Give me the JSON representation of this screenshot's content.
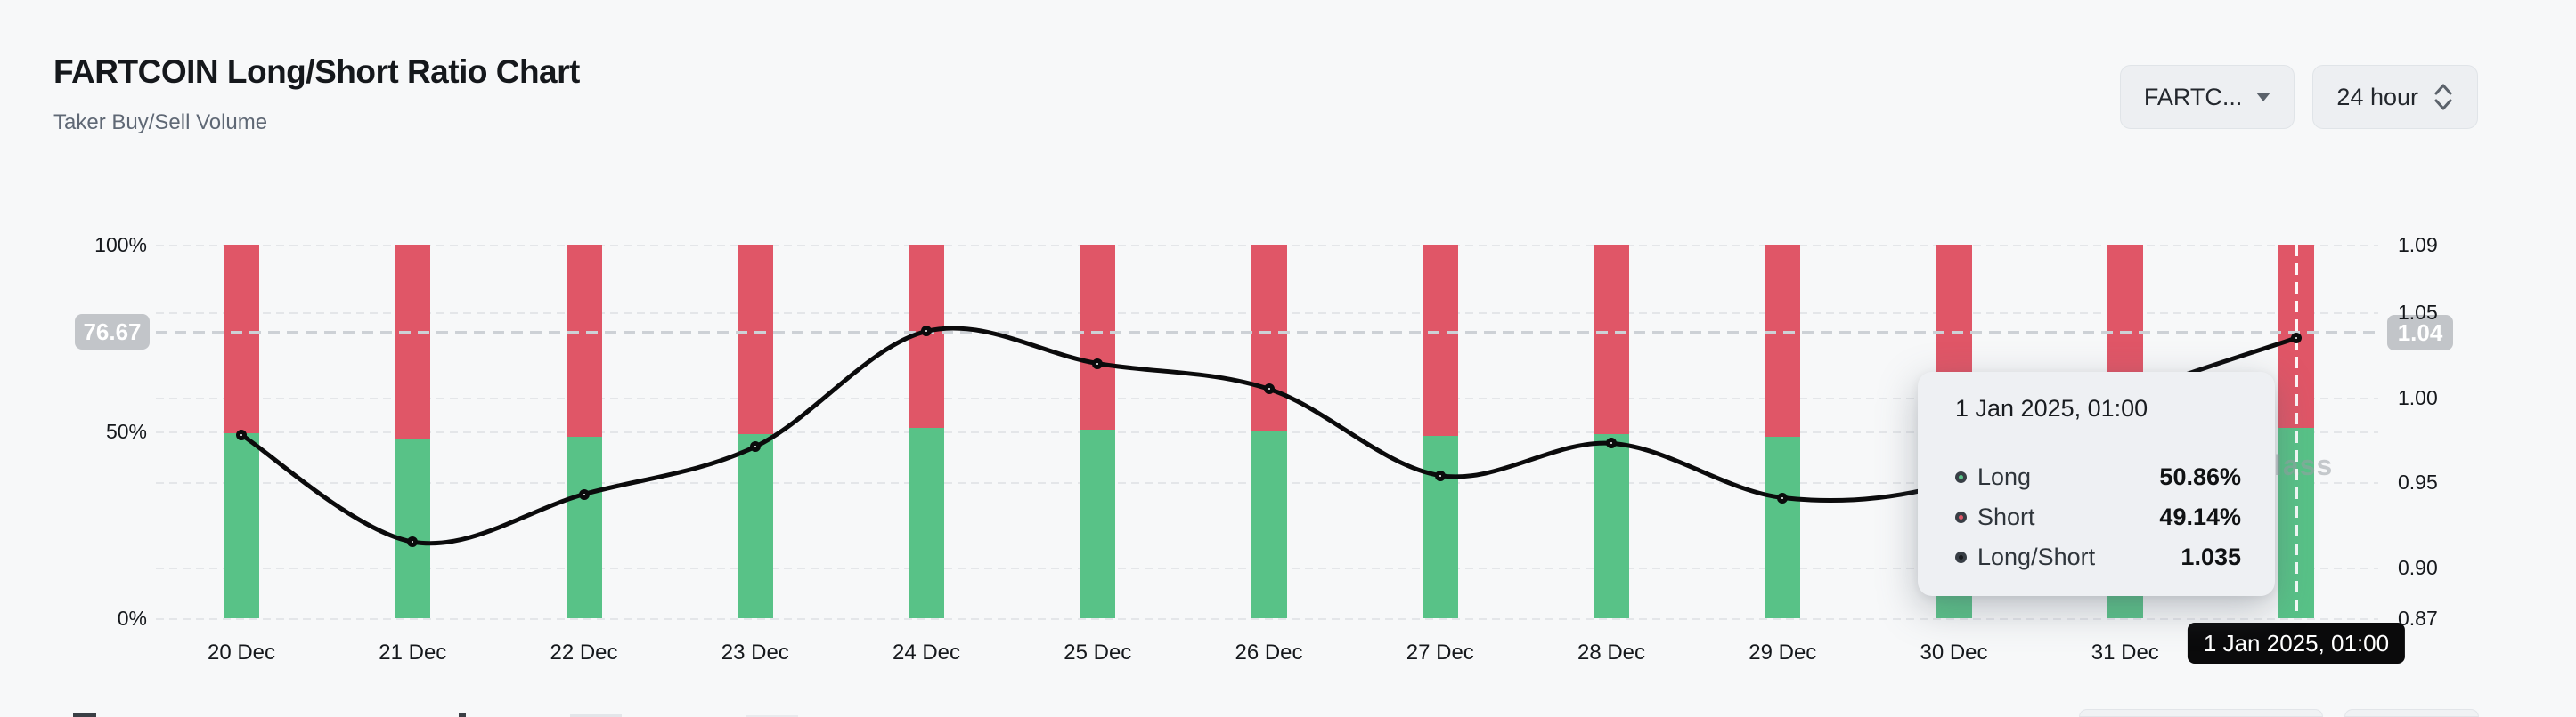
{
  "header": {
    "title": "FARTCOIN Long/Short Ratio Chart",
    "subtitle": "Taker Buy/Sell Volume"
  },
  "controls": {
    "symbol_dropdown": "FARTC...",
    "interval_dropdown": "24 hour"
  },
  "watermark_visible": "lass",
  "chart_data": {
    "type": "stacked_bar_line",
    "title": "FARTCOIN Long/Short Ratio Chart",
    "categories": [
      "20 Dec",
      "21 Dec",
      "22 Dec",
      "23 Dec",
      "24 Dec",
      "25 Dec",
      "26 Dec",
      "27 Dec",
      "28 Dec",
      "29 Dec",
      "30 Dec",
      "31 Dec",
      "1 Jan"
    ],
    "series": [
      {
        "name": "Long",
        "type": "bar",
        "color": "#58c287",
        "values": [
          49.44,
          47.78,
          48.53,
          49.26,
          50.96,
          50.5,
          50.12,
          48.82,
          49.32,
          48.48,
          48.7,
          50.0,
          50.86
        ]
      },
      {
        "name": "Short",
        "type": "bar",
        "color": "#e05667",
        "values": [
          50.56,
          52.22,
          51.47,
          50.74,
          49.04,
          49.5,
          49.88,
          51.18,
          50.68,
          51.52,
          51.3,
          50.0,
          49.14
        ]
      },
      {
        "name": "Long/Short",
        "type": "line",
        "color": "#0b0b0c",
        "values": [
          0.978,
          0.915,
          0.943,
          0.971,
          1.039,
          1.02,
          1.005,
          0.954,
          0.973,
          0.941,
          0.95,
          1.0,
          1.035
        ]
      }
    ],
    "left_axis": {
      "ticks": [
        "100%",
        "50%",
        "0%"
      ],
      "tick_values": [
        100,
        50,
        0
      ],
      "range": [
        0,
        100
      ]
    },
    "right_axis": {
      "ticks": [
        "1.09",
        "1.05",
        "1.00",
        "0.95",
        "0.90",
        "0.87"
      ],
      "tick_values": [
        1.09,
        1.05,
        1.0,
        0.95,
        0.9,
        0.87
      ],
      "range": [
        0.87,
        1.09
      ]
    },
    "grid": "horizontal-dashed",
    "legend_position": "none",
    "crosshair": {
      "left_label": "76.67",
      "right_label": "1.04",
      "x_label": "1 Jan 2025, 01:00",
      "x_index": 12
    },
    "tooltip": {
      "title": "1 Jan 2025, 01:00",
      "rows": [
        {
          "label": "Long",
          "value": "50.86%",
          "color": "#58c287"
        },
        {
          "label": "Short",
          "value": "49.14%",
          "color": "#e05667"
        },
        {
          "label": "Long/Short",
          "value": "1.035",
          "color": "#17191c"
        }
      ]
    }
  }
}
